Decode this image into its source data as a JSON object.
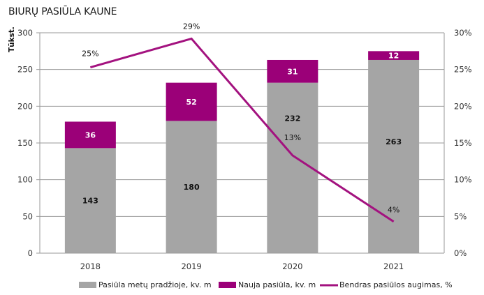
{
  "chart_data": {
    "type": "bar",
    "stacked": true,
    "title": "BIURŲ PASIŪLA KAUNE",
    "ylabel": "Tūkst.",
    "y2label": "",
    "categories": [
      "2018",
      "2019",
      "2020",
      "2021"
    ],
    "ylim": [
      0,
      300
    ],
    "yticks": [
      0,
      50,
      100,
      150,
      200,
      250,
      300
    ],
    "y2lim": [
      0,
      30
    ],
    "y2ticks": [
      "0%",
      "5%",
      "10%",
      "15%",
      "20%",
      "25%",
      "30%"
    ],
    "y2tick_values": [
      0,
      5,
      10,
      15,
      20,
      25,
      30
    ],
    "grid": true,
    "legend_position": "bottom",
    "series": [
      {
        "name": "Pasiūla metų pradžioje, kv. m",
        "kind": "bar",
        "color": "#a5a5a5",
        "values": [
          143,
          180,
          232,
          263
        ],
        "labels": [
          "143",
          "180",
          "232",
          "263"
        ]
      },
      {
        "name": "Nauja pasiūla, kv. m",
        "kind": "bar",
        "color": "#9b0078",
        "values": [
          36,
          52,
          31,
          12
        ],
        "labels": [
          "36",
          "52",
          "31",
          "12"
        ]
      },
      {
        "name": "Bendras pasiūlos augimas, %",
        "kind": "line",
        "axis": "secondary",
        "color": "#a3127f",
        "values": [
          25.3,
          29.2,
          13.3,
          4.3
        ],
        "labels": [
          "25%",
          "29%",
          "13%",
          "4%"
        ]
      }
    ]
  }
}
